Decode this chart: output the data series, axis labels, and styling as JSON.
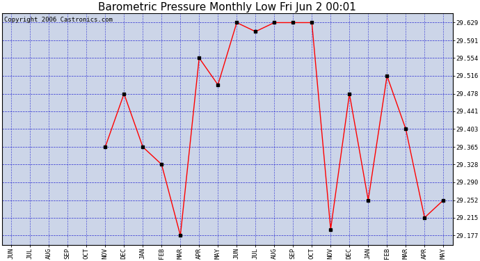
{
  "title": "Barometric Pressure Monthly Low Fri Jun 2 00:01",
  "copyright": "Copyright 2006 Castronics.com",
  "x_labels": [
    "JUN",
    "JUL",
    "AUG",
    "SEP",
    "OCT",
    "NOV",
    "DEC",
    "JAN",
    "FEB",
    "MAR",
    "APR",
    "MAY",
    "JUN",
    "JUL",
    "AUG",
    "SEP",
    "OCT",
    "NOV",
    "DEC",
    "JAN",
    "FEB",
    "MAR",
    "APR",
    "MAY"
  ],
  "y_values": [
    null,
    null,
    null,
    null,
    null,
    29.365,
    29.478,
    29.365,
    29.328,
    29.177,
    29.554,
    29.497,
    29.629,
    29.61,
    29.629,
    29.629,
    29.629,
    29.19,
    29.478,
    29.252,
    29.516,
    29.403,
    29.215,
    29.252
  ],
  "ylim_min": 29.157,
  "ylim_max": 29.649,
  "yticks": [
    29.177,
    29.215,
    29.252,
    29.29,
    29.328,
    29.365,
    29.403,
    29.441,
    29.478,
    29.516,
    29.554,
    29.591,
    29.629
  ],
  "line_color": "red",
  "marker_color": "black",
  "bg_color": "#ccd5e8",
  "grid_color": "#0000cc",
  "title_fontsize": 11,
  "copyright_fontsize": 6.5
}
